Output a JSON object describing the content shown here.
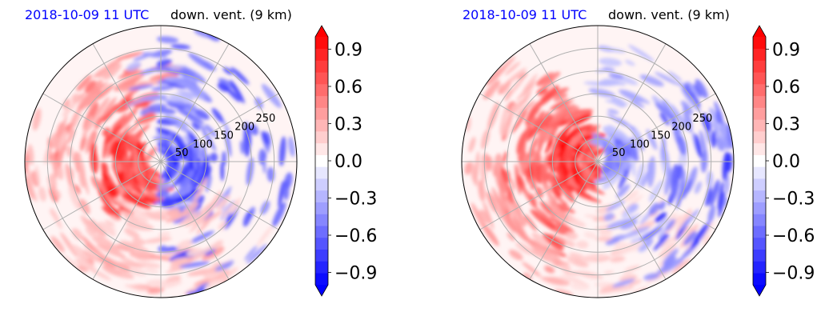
{
  "chart_data": [
    {
      "type": "heatmap",
      "projection": "polar",
      "title_left": "2018-10-09 11 UTC",
      "title_right": "down. vent. (9 km)",
      "title_left_color": "#0000ff",
      "title_right_color": "#000000",
      "radial_ticks": [
        "50",
        "100",
        "150",
        "200",
        "250"
      ],
      "radial_values": [
        50,
        100,
        150,
        200,
        250
      ],
      "rmax": 300,
      "angular_grid_deg": [
        0,
        30,
        60,
        90,
        120,
        150,
        180,
        210,
        240,
        270,
        300,
        330
      ],
      "grid": true,
      "colormap": "bwr",
      "clim": [
        -1.0,
        1.0
      ],
      "colorbar": {
        "ticks": [
          "0.9",
          "0.6",
          "0.3",
          "0.0",
          "−0.3",
          "−0.6",
          "−0.9"
        ],
        "tick_values": [
          0.9,
          0.6,
          0.3,
          0.0,
          -0.3,
          -0.6,
          -0.9
        ],
        "extend": "both",
        "levels": 21
      }
    },
    {
      "type": "heatmap",
      "projection": "polar",
      "title_left": "2018-10-09 11 UTC",
      "title_right": "down. vent. (9 km)",
      "title_left_color": "#0000ff",
      "title_right_color": "#000000",
      "radial_ticks": [
        "50",
        "100",
        "150",
        "200",
        "250"
      ],
      "radial_values": [
        50,
        100,
        150,
        200,
        250
      ],
      "rmax": 300,
      "angular_grid_deg": [
        0,
        30,
        60,
        90,
        120,
        150,
        180,
        210,
        240,
        270,
        300,
        330
      ],
      "grid": true,
      "colormap": "bwr",
      "clim": [
        -1.0,
        1.0
      ],
      "colorbar": {
        "ticks": [
          "0.9",
          "0.6",
          "0.3",
          "0.0",
          "−0.3",
          "−0.6",
          "−0.9"
        ],
        "tick_values": [
          0.9,
          0.6,
          0.3,
          0.0,
          -0.3,
          -0.6,
          -0.9
        ],
        "extend": "both",
        "levels": 21
      }
    }
  ]
}
